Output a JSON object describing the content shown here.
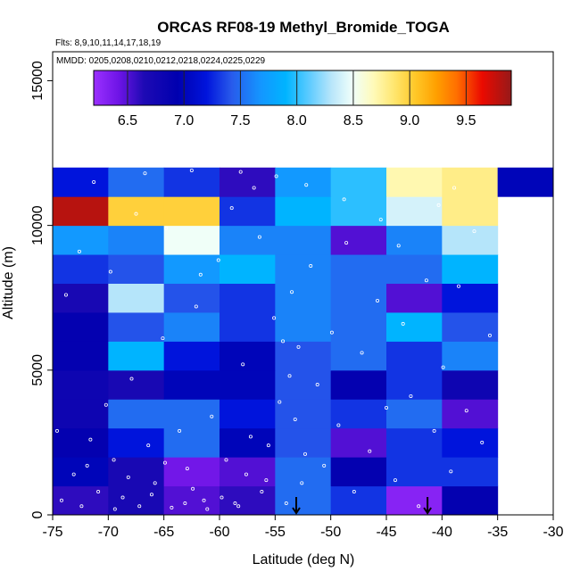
{
  "chart_data": {
    "type": "heatmap",
    "title": "ORCAS RF08-19 Methyl_Bromide_TOGA",
    "flights_label": "Flts: 8,9,10,11,14,17,18,19",
    "dates_label": "MMDD: 0205,0208,0210,0212,0218,0224,0225,0229",
    "xlabel": "Latitude (deg N)",
    "ylabel": "Altitude (m)",
    "xlim": [
      -75,
      -30
    ],
    "ylim": [
      0,
      16000
    ],
    "x_ticks": [
      -75,
      -70,
      -65,
      -60,
      -55,
      -50,
      -45,
      -40,
      -35,
      -30
    ],
    "y_ticks": [
      0,
      5000,
      10000,
      15000
    ],
    "x_bin_edges": [
      -75,
      -70,
      -65,
      -60,
      -55,
      -50,
      -45,
      -40,
      -35,
      -30
    ],
    "y_bin_edges": [
      0,
      1000,
      2000,
      3000,
      4000,
      5000,
      6000,
      7000,
      8000,
      9000,
      10000,
      11000,
      12000
    ],
    "colorbar": {
      "min": 6.2,
      "max": 9.9,
      "ticks": [
        6.5,
        7.0,
        7.5,
        8.0,
        8.5,
        9.0,
        9.5
      ],
      "tick_labels": [
        "6.5",
        "7.0",
        "7.5",
        "8.0",
        "8.5",
        "9.0",
        "9.5"
      ]
    },
    "values": [
      [
        6.6,
        6.7,
        6.5,
        6.6,
        7.5,
        7.3,
        6.3,
        6.9,
        null
      ],
      [
        7.0,
        6.7,
        6.4,
        6.5,
        7.5,
        6.9,
        7.3,
        7.3,
        null
      ],
      [
        6.9,
        7.2,
        7.5,
        7.0,
        7.4,
        6.5,
        7.3,
        7.2,
        null
      ],
      [
        6.8,
        7.5,
        7.5,
        7.2,
        7.4,
        7.3,
        7.5,
        6.5,
        null
      ],
      [
        6.8,
        6.7,
        7.0,
        7.0,
        7.4,
        6.9,
        7.3,
        6.8,
        null
      ],
      [
        6.9,
        7.9,
        7.2,
        7.0,
        7.4,
        7.5,
        7.3,
        7.6,
        null
      ],
      [
        6.9,
        7.4,
        7.6,
        7.3,
        7.6,
        7.5,
        7.9,
        7.4,
        null
      ],
      [
        6.7,
        8.3,
        7.4,
        7.3,
        7.6,
        7.5,
        6.5,
        7.2,
        null
      ],
      [
        7.3,
        7.4,
        7.7,
        7.9,
        7.6,
        7.5,
        7.5,
        7.9,
        null
      ],
      [
        7.7,
        7.6,
        8.5,
        7.6,
        7.6,
        6.5,
        7.6,
        8.3,
        null
      ],
      [
        9.8,
        9.0,
        9.0,
        7.3,
        7.9,
        8.0,
        8.4,
        8.8,
        null
      ],
      [
        7.2,
        7.5,
        7.3,
        6.6,
        7.7,
        8.0,
        8.7,
        8.8,
        7.0
      ]
    ],
    "sample_points": [
      [
        -74.2,
        500
      ],
      [
        -73.1,
        1400
      ],
      [
        -72.4,
        300
      ],
      [
        -71.6,
        2600
      ],
      [
        -70.9,
        800
      ],
      [
        -70.2,
        3800
      ],
      [
        -69.5,
        1900
      ],
      [
        -68.7,
        600
      ],
      [
        -67.9,
        4700
      ],
      [
        -67.2,
        300
      ],
      [
        -66.4,
        2400
      ],
      [
        -65.8,
        1100
      ],
      [
        -65.1,
        6100
      ],
      [
        -64.3,
        250
      ],
      [
        -63.6,
        2900
      ],
      [
        -62.9,
        1600
      ],
      [
        -62.1,
        7200
      ],
      [
        -61.4,
        500
      ],
      [
        -60.7,
        3400
      ],
      [
        -60.1,
        8800
      ],
      [
        -59.4,
        1900
      ],
      [
        -58.6,
        400
      ],
      [
        -57.9,
        5200
      ],
      [
        -57.2,
        2700
      ],
      [
        -56.4,
        9600
      ],
      [
        -55.8,
        1200
      ],
      [
        -55.1,
        6800
      ],
      [
        -54.6,
        3900
      ],
      [
        -54.0,
        400
      ],
      [
        -53.5,
        7700
      ],
      [
        -52.9,
        5800
      ],
      [
        -52.3,
        2100
      ],
      [
        -51.8,
        8600
      ],
      [
        -51.2,
        4500
      ],
      [
        -50.6,
        1700
      ],
      [
        -49.9,
        6300
      ],
      [
        -49.3,
        3100
      ],
      [
        -48.6,
        9400
      ],
      [
        -47.9,
        800
      ],
      [
        -47.2,
        5600
      ],
      [
        -46.5,
        2200
      ],
      [
        -45.8,
        7400
      ],
      [
        -45.0,
        3700
      ],
      [
        -44.2,
        1200
      ],
      [
        -43.5,
        6600
      ],
      [
        -42.8,
        4100
      ],
      [
        -42.1,
        300
      ],
      [
        -41.4,
        8100
      ],
      [
        -40.7,
        2900
      ],
      [
        -39.9,
        5100
      ],
      [
        -39.2,
        1500
      ],
      [
        -38.5,
        7900
      ],
      [
        -37.8,
        3600
      ],
      [
        -37.1,
        9800
      ],
      [
        -36.4,
        2500
      ],
      [
        -35.7,
        6200
      ],
      [
        -73.8,
        7600
      ],
      [
        -72.6,
        9100
      ],
      [
        -69.8,
        8400
      ],
      [
        -67.5,
        10400
      ],
      [
        -64.8,
        9900
      ],
      [
        -61.7,
        8300
      ],
      [
        -58.9,
        10600
      ],
      [
        -56.9,
        11300
      ],
      [
        -71.3,
        11500
      ],
      [
        -66.7,
        11800
      ],
      [
        -62.5,
        11900
      ],
      [
        -58.1,
        11850
      ],
      [
        -54.9,
        11700
      ],
      [
        -52.2,
        11400
      ],
      [
        -48.8,
        10900
      ],
      [
        -45.5,
        10200
      ],
      [
        -43.9,
        9300
      ],
      [
        -40.3,
        10700
      ],
      [
        -38.9,
        11300
      ],
      [
        -53.7,
        4800
      ],
      [
        -53.2,
        3300
      ],
      [
        -52.6,
        1100
      ],
      [
        -54.3,
        6000
      ],
      [
        -55.6,
        2400
      ],
      [
        -56.2,
        800
      ],
      [
        -63.1,
        400
      ],
      [
        -62.4,
        900
      ],
      [
        -61.1,
        200
      ],
      [
        -59.8,
        600
      ],
      [
        -58.3,
        300
      ],
      [
        -57.6,
        1400
      ],
      [
        -64.9,
        1800
      ],
      [
        -66.1,
        700
      ],
      [
        -68.2,
        1300
      ],
      [
        -69.4,
        200
      ],
      [
        -71.9,
        1700
      ],
      [
        -74.6,
        2900
      ]
    ],
    "arrows": [
      {
        "lat": -53.1,
        "label": "down-arrow"
      },
      {
        "lat": -41.3,
        "label": "down-arrow"
      }
    ]
  }
}
